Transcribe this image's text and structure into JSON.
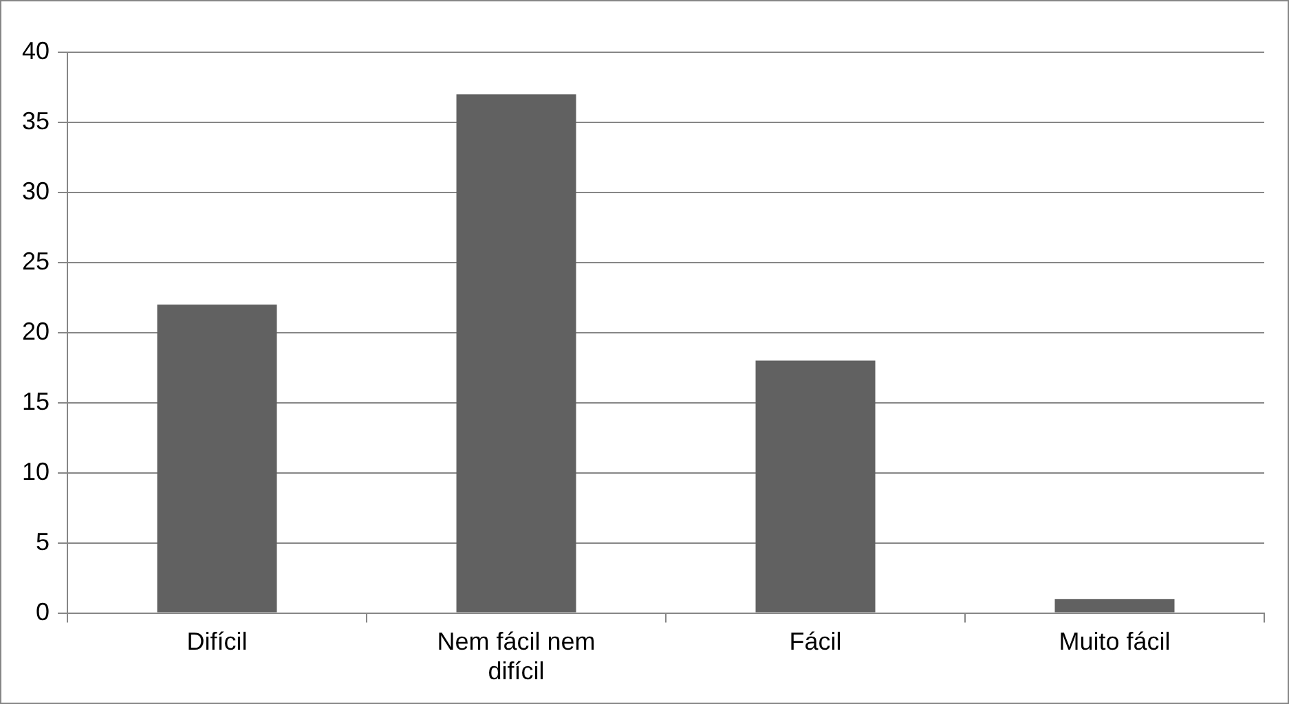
{
  "chart_data": {
    "type": "bar",
    "categories": [
      "Difícil",
      "Nem fácil nem difícil",
      "Fácil",
      "Muito fácil"
    ],
    "values": [
      22,
      37,
      18,
      1
    ],
    "color": "#616161",
    "ylim": [
      0,
      40
    ],
    "yticks": [
      0,
      5,
      10,
      15,
      20,
      25,
      30,
      35,
      40
    ],
    "grid": "y",
    "legend": false
  }
}
